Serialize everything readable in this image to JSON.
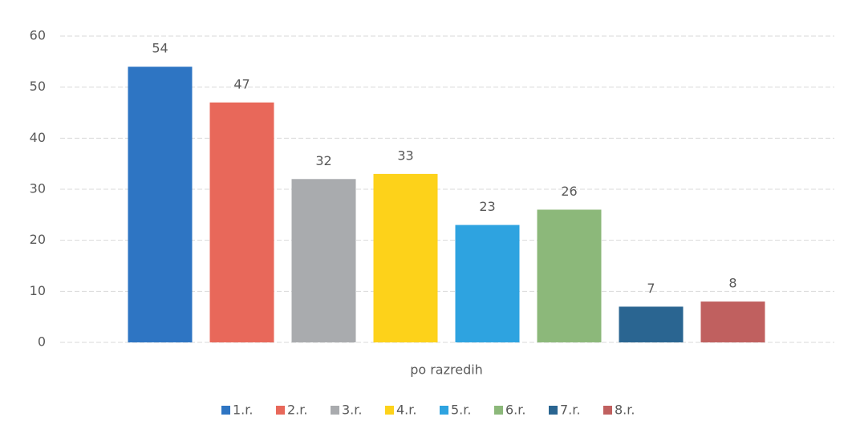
{
  "chart_data": {
    "type": "bar",
    "categories": [
      "po razredih"
    ],
    "series": [
      {
        "name": "1.r.",
        "color": "#2e75c3",
        "values": [
          54
        ]
      },
      {
        "name": "2.r.",
        "color": "#e8685a",
        "values": [
          47
        ]
      },
      {
        "name": "3.r.",
        "color": "#a9abae",
        "values": [
          32
        ]
      },
      {
        "name": "4.r.",
        "color": "#fdd21a",
        "values": [
          33
        ]
      },
      {
        "name": "5.r.",
        "color": "#2ea3e0",
        "values": [
          23
        ]
      },
      {
        "name": "6.r.",
        "color": "#8cb87a",
        "values": [
          26
        ]
      },
      {
        "name": "7.r.",
        "color": "#2a6591",
        "values": [
          7
        ]
      },
      {
        "name": "8.r.",
        "color": "#c0605f",
        "values": [
          8
        ]
      }
    ],
    "ylim": [
      0,
      60
    ],
    "yticks": [
      0,
      10,
      20,
      30,
      40,
      50,
      60
    ],
    "grid": true,
    "legend": "bottom"
  }
}
